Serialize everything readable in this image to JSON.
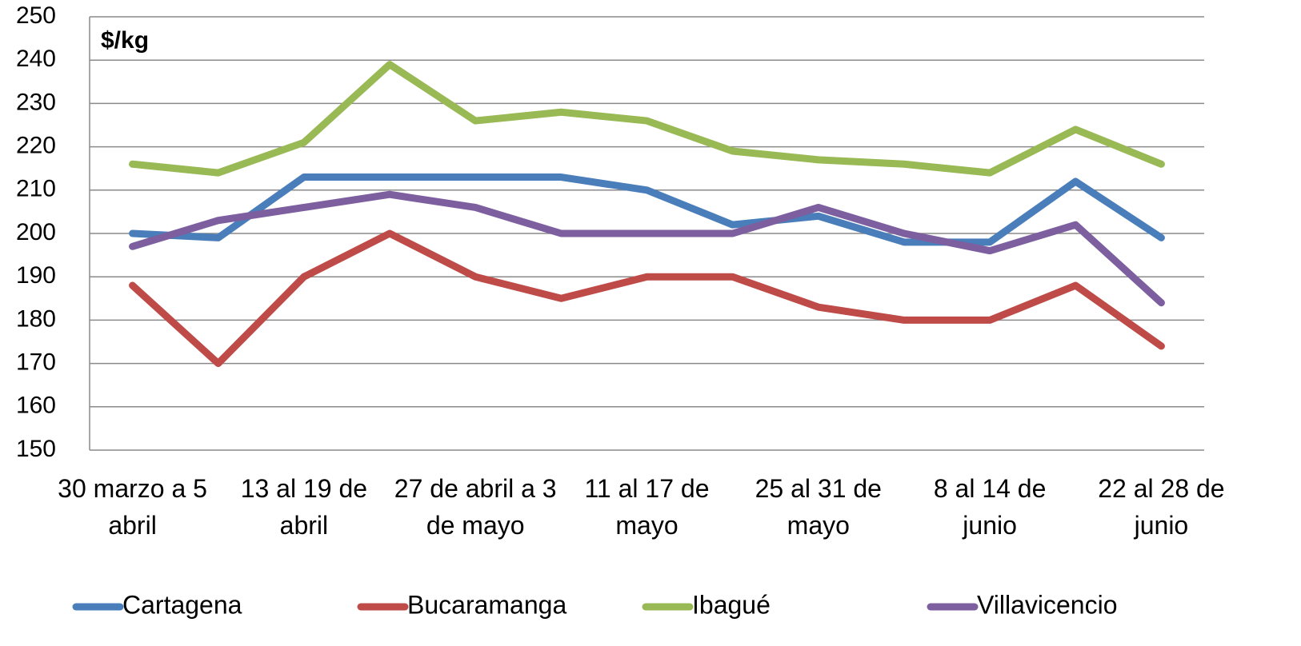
{
  "chart_data": {
    "type": "line",
    "annotation": "$/kg",
    "categories": [
      "30 marzo a 5 abril",
      null,
      "13 al 19 de abril",
      null,
      "27 de abril a 3 de mayo",
      null,
      "11 al 17 de mayo",
      null,
      "25 al 31 de mayo",
      null,
      "8 al 14 de junio",
      null,
      "22 al 28 de junio"
    ],
    "series": [
      {
        "name": "Cartagena",
        "color": "#4a7ebb",
        "values": [
          200,
          199,
          213,
          213,
          213,
          213,
          210,
          202,
          204,
          198,
          198,
          212,
          199
        ]
      },
      {
        "name": "Bucaramanga",
        "color": "#be4b48",
        "values": [
          188,
          170,
          190,
          200,
          190,
          185,
          190,
          190,
          183,
          180,
          180,
          188,
          174
        ]
      },
      {
        "name": "Ibagué",
        "color": "#98b954",
        "values": [
          216,
          214,
          221,
          239,
          226,
          228,
          226,
          219,
          217,
          216,
          214,
          224,
          216
        ]
      },
      {
        "name": "Villavicencio",
        "color": "#7d5fa0",
        "values": [
          197,
          203,
          206,
          209,
          206,
          200,
          200,
          200,
          206,
          200,
          196,
          202,
          184
        ]
      }
    ],
    "ylim": [
      150,
      250
    ],
    "yticks": [
      150,
      160,
      170,
      180,
      190,
      200,
      210,
      220,
      230,
      240,
      250
    ],
    "grid": true,
    "legend": "bottom"
  }
}
